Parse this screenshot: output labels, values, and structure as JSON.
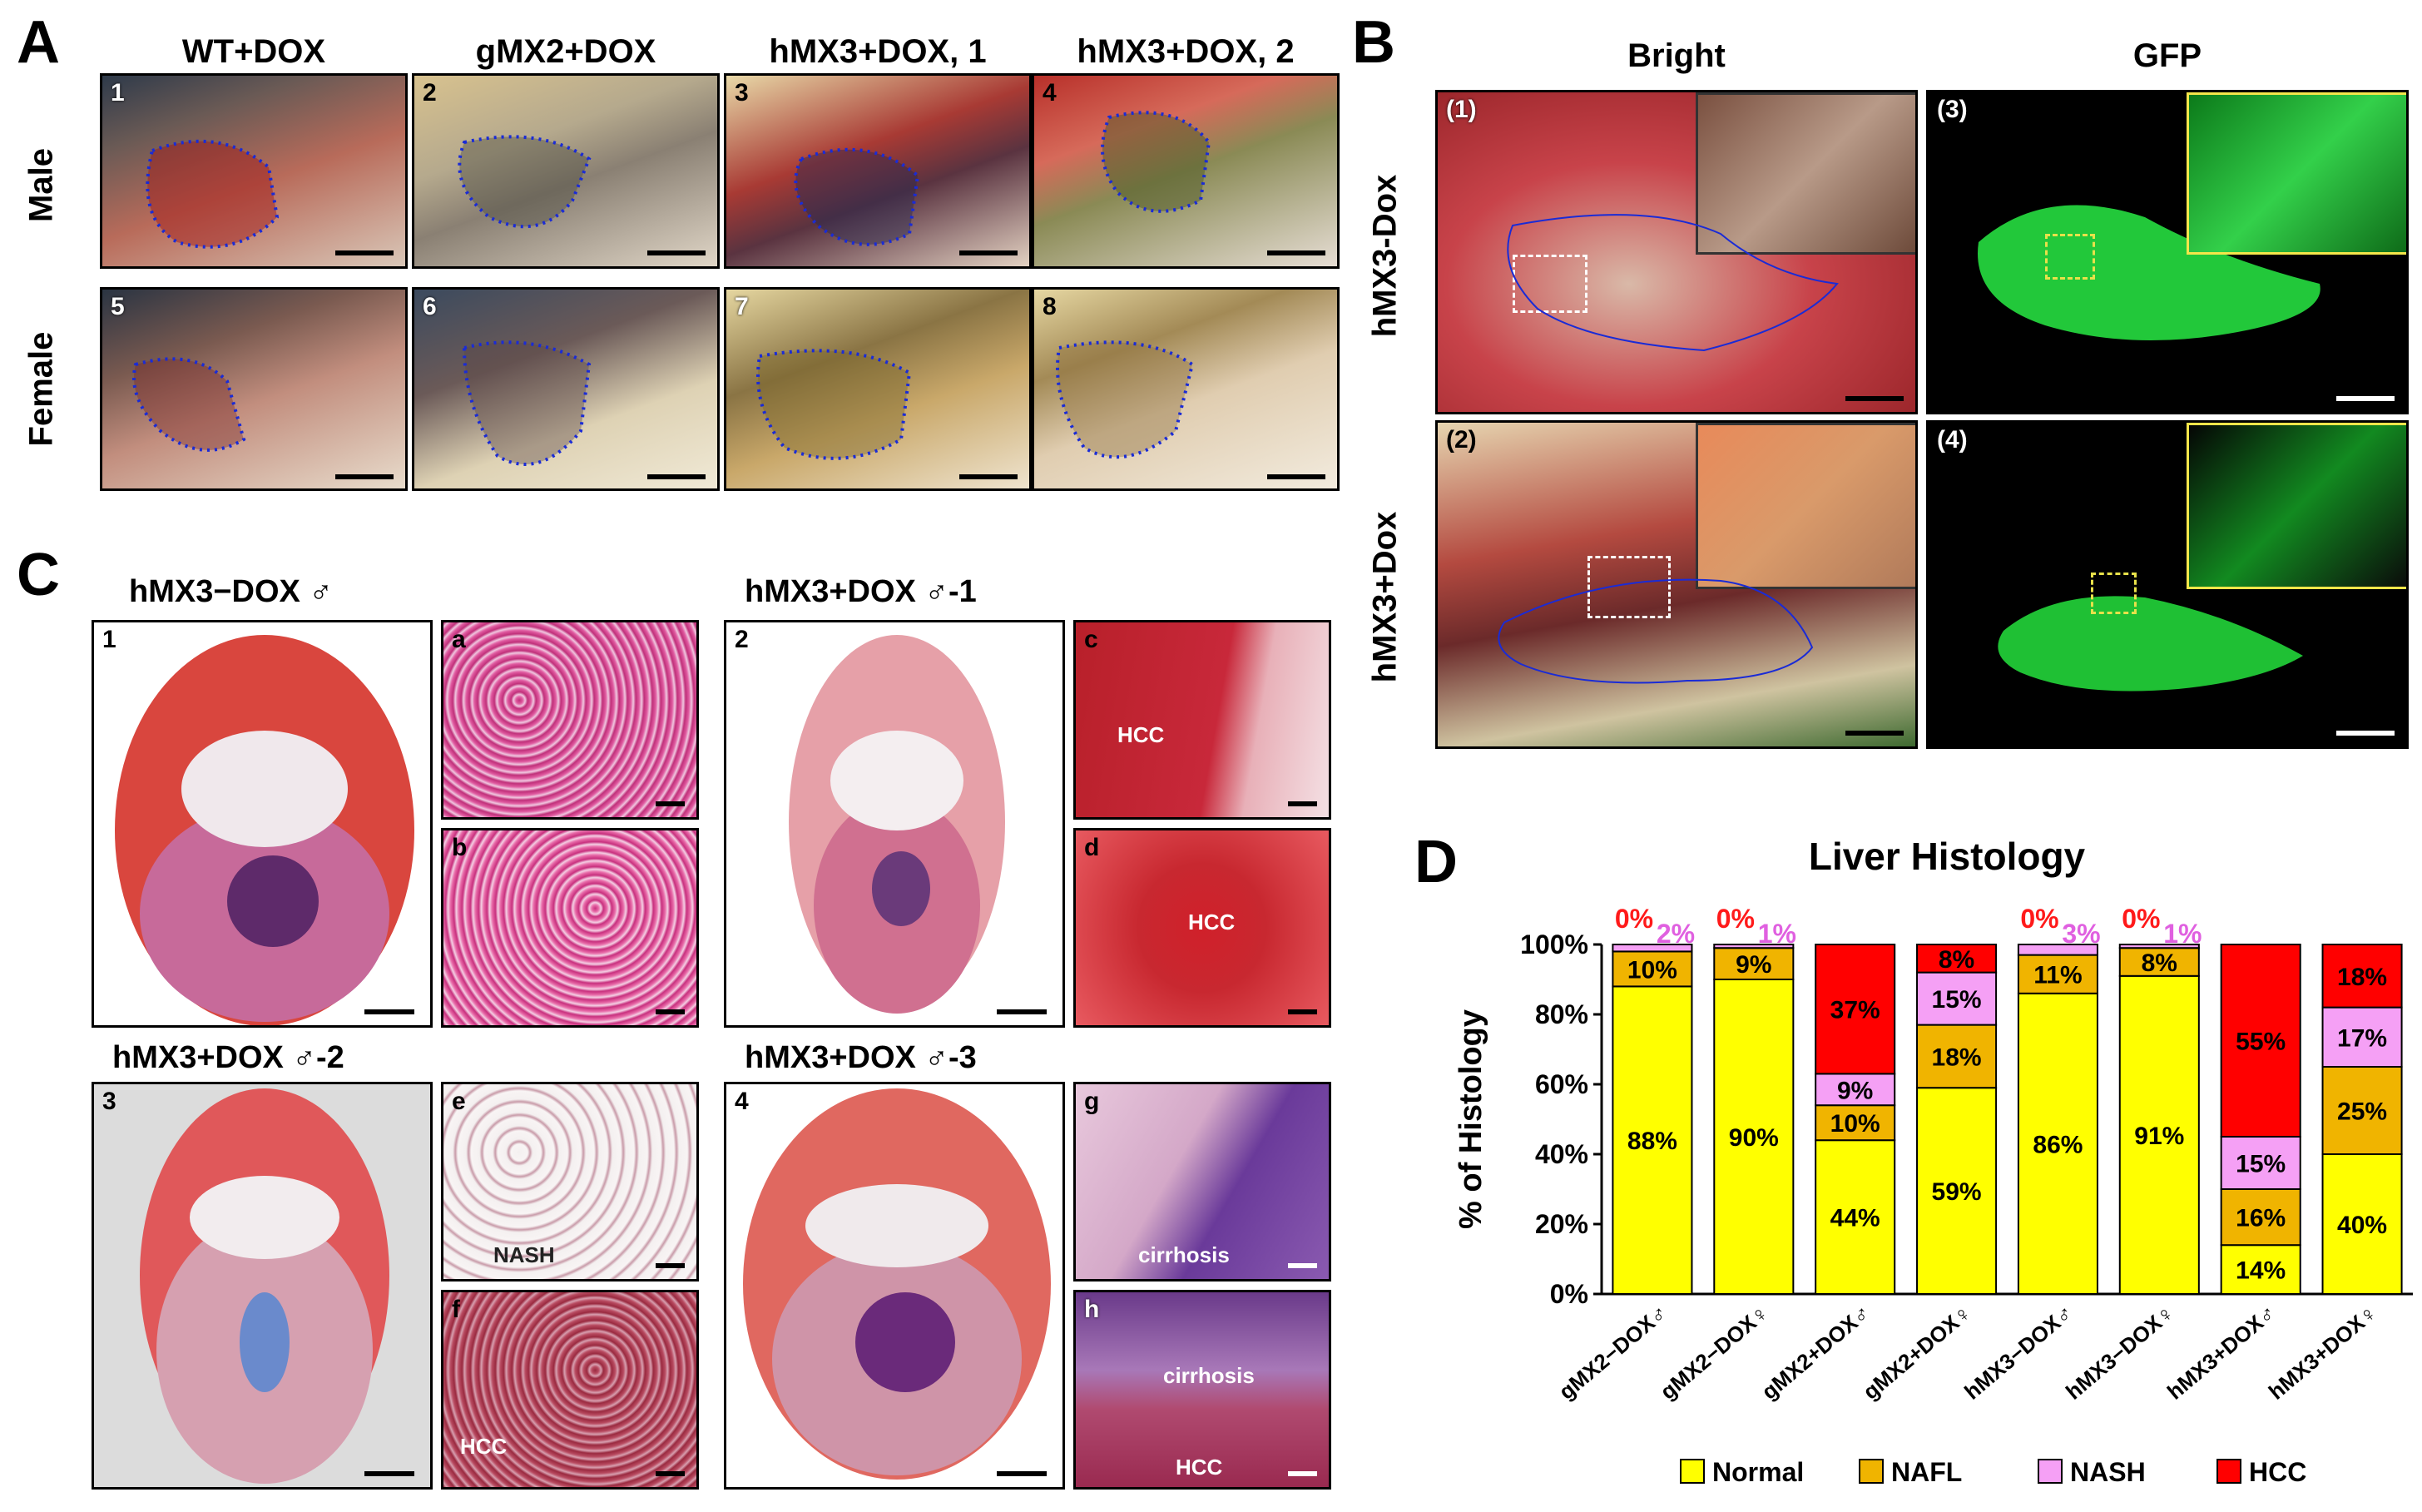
{
  "panelA": {
    "letter": "A",
    "columns": [
      "WT+DOX",
      "gMX2+DOX",
      "hMX3+DOX, 1",
      "hMX3+DOX, 2"
    ],
    "rows": [
      "Male",
      "Female"
    ],
    "numbers": [
      "1",
      "2",
      "3",
      "4",
      "5",
      "6",
      "7",
      "8"
    ]
  },
  "panelB": {
    "letter": "B",
    "columns": [
      "Bright",
      "GFP"
    ],
    "rows": [
      "hMX3-Dox",
      "hMX3+Dox"
    ],
    "numbers": [
      "(1)",
      "(2)",
      "(3)",
      "(4)"
    ]
  },
  "panelC": {
    "letter": "C",
    "sections": [
      {
        "title": "hMX3−DOX  ♂",
        "num": "1",
        "insets": [
          "a",
          "b"
        ],
        "inset_labels": [
          "",
          ""
        ]
      },
      {
        "title": "hMX3+DOX  ♂-1",
        "num": "2",
        "insets": [
          "c",
          "d"
        ],
        "inset_labels": [
          "HCC",
          "HCC"
        ]
      },
      {
        "title": "hMX3+DOX  ♂-2",
        "num": "3",
        "insets": [
          "e",
          "f"
        ],
        "inset_labels": [
          "NASH",
          "HCC"
        ]
      },
      {
        "title": "hMX3+DOX  ♂-3",
        "num": "4",
        "insets": [
          "g",
          "h"
        ],
        "inset_labels": [
          "cirrhosis",
          "cirrhosis"
        ]
      }
    ],
    "h_extra_label": "HCC"
  },
  "panelD": {
    "letter": "D",
    "chart_data": {
      "type": "bar",
      "stacked": true,
      "title": "Liver Histology",
      "ylabel": "% of Histology",
      "ylim": [
        0,
        100
      ],
      "yticks": [
        "0%",
        "20%",
        "40%",
        "60%",
        "80%",
        "100%"
      ],
      "categories": [
        "gMX2−DOX♂",
        "gMX2−DOX♀",
        "gMX2+DOX♂",
        "gMX2+DOX♀",
        "hMX3−DOX♂",
        "hMX3−DOX♀",
        "hMX3+DOX♂",
        "hMX3+DOX♀"
      ],
      "series": [
        {
          "name": "Normal",
          "color": "#ffff00",
          "values": [
            88,
            90,
            44,
            59,
            86,
            91,
            14,
            40
          ]
        },
        {
          "name": "NAFL",
          "color": "#f0b400",
          "values": [
            10,
            9,
            10,
            18,
            11,
            8,
            16,
            25
          ]
        },
        {
          "name": "NASH",
          "color": "#f5a0f5",
          "values": [
            2,
            1,
            9,
            15,
            3,
            1,
            15,
            17
          ]
        },
        {
          "name": "HCC",
          "color": "#ff0000",
          "values": [
            0,
            0,
            37,
            8,
            0,
            0,
            55,
            18
          ]
        }
      ],
      "above_labels": [
        {
          "bar": 0,
          "hcc": "0%",
          "nash": "2%"
        },
        {
          "bar": 1,
          "hcc": "0%",
          "nash": "1%"
        },
        {
          "bar": 4,
          "hcc": "0%",
          "nash": "3%"
        },
        {
          "bar": 5,
          "hcc": "0%",
          "nash": "1%"
        }
      ],
      "legend": [
        "Normal",
        "NAFL",
        "NASH",
        "HCC"
      ],
      "legend_position": "bottom"
    }
  }
}
